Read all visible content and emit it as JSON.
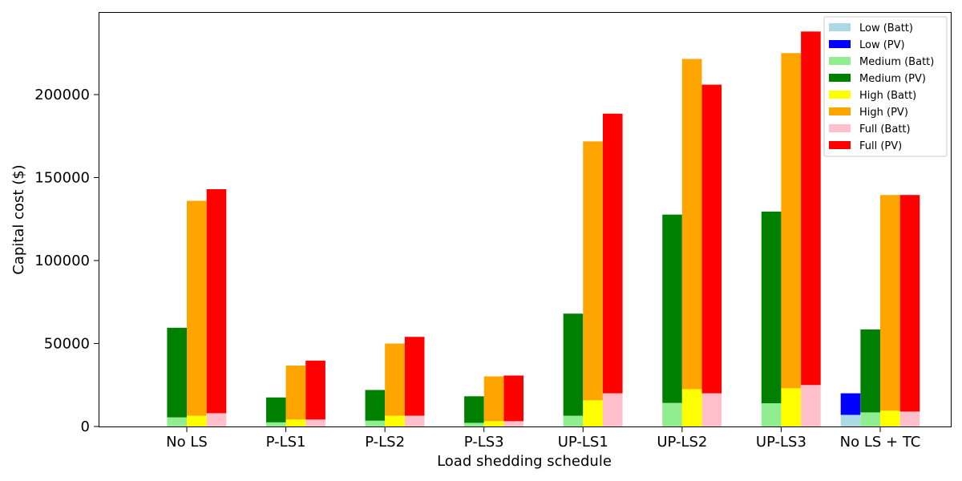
{
  "chart_data": {
    "type": "bar",
    "stacked": true,
    "xlabel": "Load shedding schedule",
    "ylabel": "Capital cost ($)",
    "ylim": [
      0,
      250000
    ],
    "yticks": [
      0,
      50000,
      100000,
      150000,
      200000
    ],
    "categories": [
      "No LS",
      "P-LS1",
      "P-LS2",
      "P-LS3",
      "UP-LS1",
      "UP-LS2",
      "UP-LS3",
      "No LS + TC"
    ],
    "groups": [
      {
        "name": "Low",
        "batt_color": "#add8e6",
        "pv_color": "#0000ff",
        "batt": [
          0,
          0,
          0,
          0,
          0,
          0,
          0,
          7000
        ],
        "pv": [
          0,
          0,
          0,
          0,
          0,
          0,
          0,
          13000
        ]
      },
      {
        "name": "Medium",
        "batt_color": "#90ee90",
        "pv_color": "#008000",
        "batt": [
          5500,
          2500,
          3500,
          2200,
          6500,
          14200,
          14000,
          8500
        ],
        "pv": [
          54000,
          15000,
          18500,
          16000,
          61500,
          113500,
          115500,
          50000
        ]
      },
      {
        "name": "High",
        "batt_color": "#ffff00",
        "pv_color": "#ffa500",
        "batt": [
          6500,
          4200,
          6500,
          3200,
          15800,
          22500,
          23000,
          9500
        ],
        "pv": [
          129500,
          32500,
          43500,
          27000,
          156000,
          199000,
          202000,
          130000
        ]
      },
      {
        "name": "Full",
        "batt_color": "#ffc0cb",
        "pv_color": "#ff0000",
        "batt": [
          8000,
          4200,
          6500,
          3200,
          20000,
          20000,
          25000,
          9000
        ],
        "pv": [
          135000,
          35500,
          47500,
          27500,
          168500,
          186000,
          213000,
          130500
        ]
      }
    ],
    "legend": {
      "placement": "top-right",
      "entries": [
        {
          "label": "Low (Batt)",
          "color": "#add8e6"
        },
        {
          "label": "Low (PV)",
          "color": "#0000ff"
        },
        {
          "label": "Medium (Batt)",
          "color": "#90ee90"
        },
        {
          "label": "Medium (PV)",
          "color": "#008000"
        },
        {
          "label": "High (Batt)",
          "color": "#ffff00"
        },
        {
          "label": "High (PV)",
          "color": "#ffa500"
        },
        {
          "label": "Full (Batt)",
          "color": "#ffc0cb"
        },
        {
          "label": "Full (PV)",
          "color": "#ff0000"
        }
      ]
    },
    "grid": false
  }
}
